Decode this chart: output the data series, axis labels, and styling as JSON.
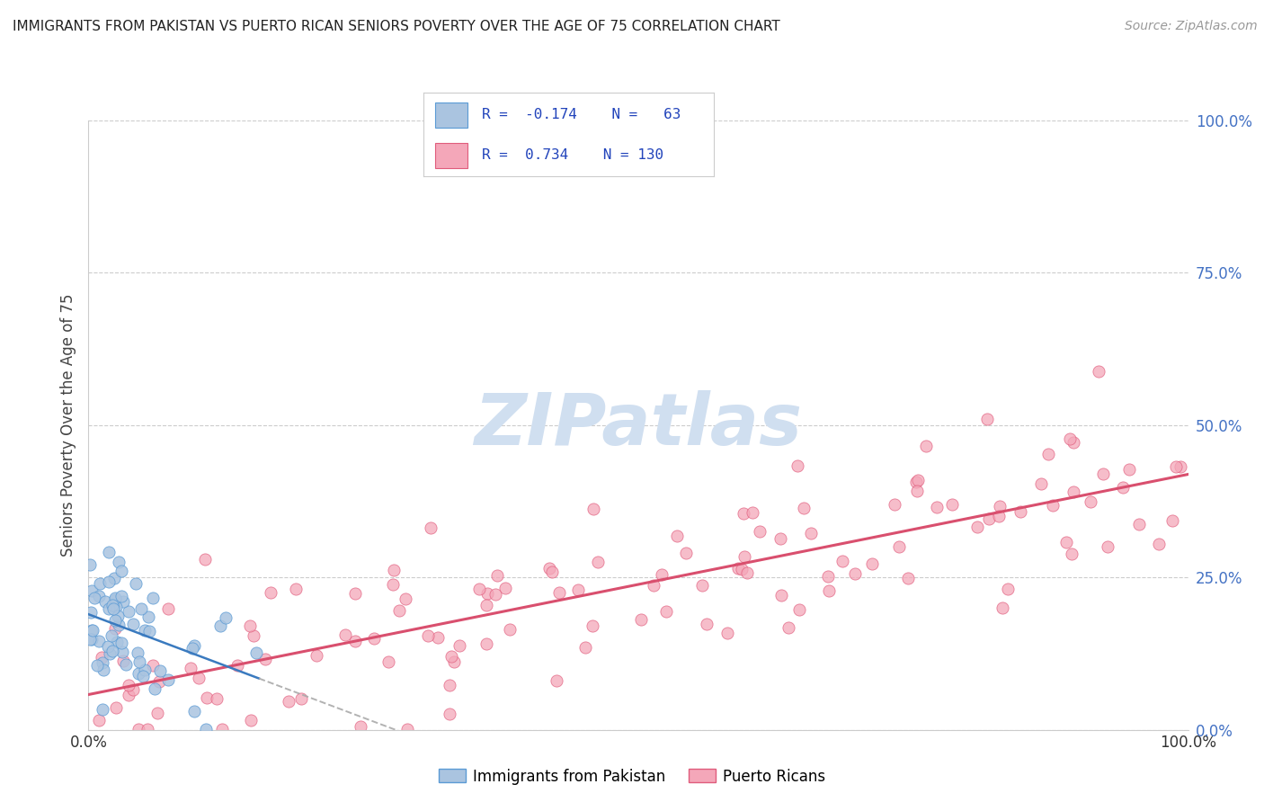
{
  "title": "IMMIGRANTS FROM PAKISTAN VS PUERTO RICAN SENIORS POVERTY OVER THE AGE OF 75 CORRELATION CHART",
  "source": "Source: ZipAtlas.com",
  "ylabel": "Seniors Poverty Over the Age of 75",
  "right_ytick_vals": [
    0.0,
    0.25,
    0.5,
    0.75,
    1.0
  ],
  "right_yticklabels": [
    "0.0%",
    "25.0%",
    "50.0%",
    "75.0%",
    "100.0%"
  ],
  "blue_color": "#aac4e0",
  "blue_edge": "#5b9bd5",
  "pink_color": "#f4a7b9",
  "pink_edge": "#e05c7c",
  "trend_blue_solid": "#3a7abf",
  "trend_blue_dash": "#aaaaaa",
  "trend_pink": "#d94f6e",
  "grid_color": "#cccccc",
  "title_color": "#222222",
  "source_color": "#999999",
  "axis_color": "#cccccc",
  "right_tick_color": "#4472c4",
  "bottom_tick_color": "#333333",
  "watermark_color": "#d0dff0",
  "legend_border": "#cccccc",
  "legend_text_color": "#2244bb"
}
